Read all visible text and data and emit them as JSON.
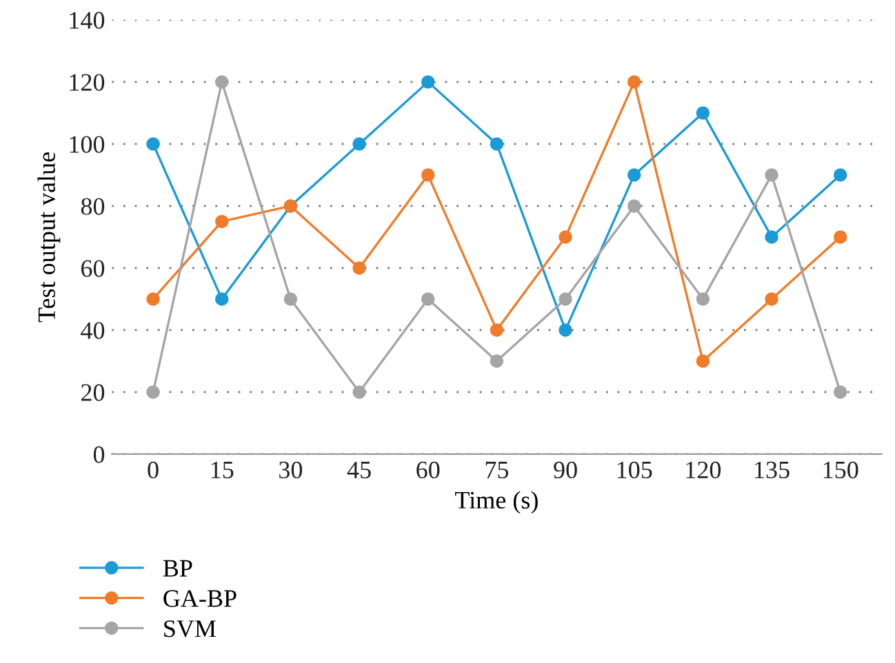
{
  "chart_data": {
    "type": "line",
    "xlabel": "Time (s)",
    "ylabel": "Test output value",
    "categories": [
      "0",
      "15",
      "30",
      "45",
      "60",
      "75",
      "90",
      "105",
      "120",
      "135",
      "150"
    ],
    "series": [
      {
        "name": "BP",
        "color": "#1a9bd7",
        "values": [
          100,
          50,
          80,
          100,
          120,
          100,
          40,
          90,
          110,
          70,
          90
        ]
      },
      {
        "name": "GA-BP",
        "color": "#f07c2a",
        "values": [
          50,
          75,
          80,
          60,
          90,
          40,
          70,
          120,
          30,
          50,
          70
        ]
      },
      {
        "name": "SVM",
        "color": "#a5a5a5",
        "values": [
          20,
          120,
          50,
          20,
          50,
          30,
          50,
          80,
          50,
          90,
          20
        ]
      }
    ],
    "ylim": [
      0,
      140
    ],
    "yticks": [
      0,
      20,
      40,
      60,
      80,
      100,
      120,
      140
    ],
    "grid": "y",
    "legend": "bottom left",
    "marker": "circle",
    "line_style": "solid"
  }
}
